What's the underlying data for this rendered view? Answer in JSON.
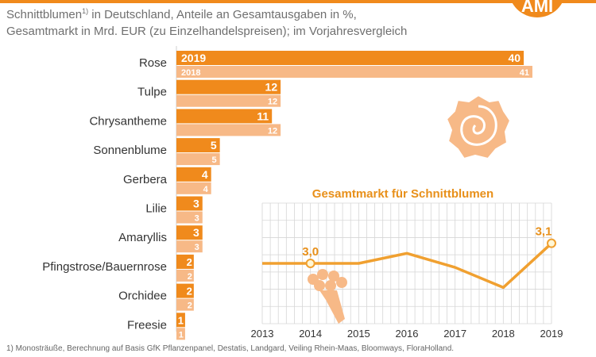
{
  "header": {
    "subtitle_part1": "Schnittblumen",
    "subtitle_sup": "1)",
    "subtitle_part2": " in Deutschland, Anteile an Gesamtausgaben in %,",
    "subtitle_line2": "Gesamtmarkt in Mrd. EUR (zu Einzelhandelspreisen); im Vorjahresvergleich",
    "logo_text": "AMI"
  },
  "footnote": "1) Monosträuße, Berechnung auf Basis GfK Pflanzenpanel, Destatis, Landgard, Veiling Rhein-Maas, Bloomways, FloraHolland.",
  "colors": {
    "orange": "#f08a1c",
    "light_orange": "#f7b987",
    "inset_line": "#f0a030",
    "grid": "#d6d6d6",
    "title_text": "#e8901a"
  },
  "icons": [
    "rose-icon",
    "bouquet-icon"
  ],
  "chart_data": [
    {
      "type": "bar",
      "orientation": "horizontal",
      "categories": [
        "Rose",
        "Tulpe",
        "Chrysantheme",
        "Sonnenblume",
        "Gerbera",
        "Lilie",
        "Amaryllis",
        "Pfingstrose/Bauernrose",
        "Orchidee",
        "Freesie"
      ],
      "series": [
        {
          "name": "2019",
          "values": [
            40,
            12,
            11,
            5,
            4,
            3,
            3,
            2,
            2,
            1
          ]
        },
        {
          "name": "2018",
          "values": [
            41,
            12,
            12,
            5,
            4,
            3,
            3,
            2,
            2,
            1
          ]
        }
      ],
      "unit": "%",
      "xlim": [
        0,
        41
      ]
    },
    {
      "type": "line",
      "title": "Gesamtmarkt für Schnittblumen",
      "x": [
        2013,
        2014,
        2015,
        2016,
        2017,
        2018,
        2019
      ],
      "values": [
        3.0,
        3.0,
        3.0,
        3.05,
        2.98,
        2.88,
        3.1
      ],
      "point_labels": {
        "2014": "3,0",
        "2019": "3,1"
      },
      "ylim": [
        2.7,
        3.3
      ],
      "grid": true
    }
  ]
}
